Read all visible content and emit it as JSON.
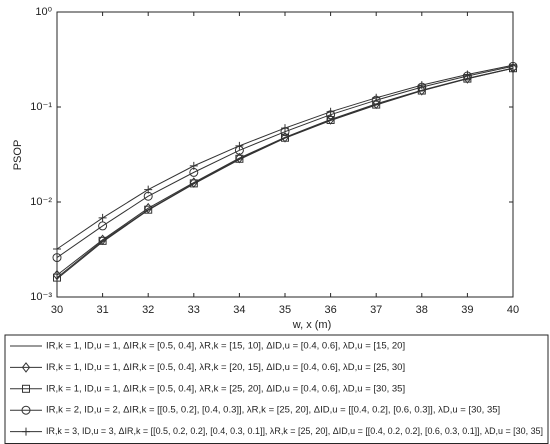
{
  "chart_data": {
    "type": "line",
    "x_label": "w, x (m)",
    "y_label": "PSOP",
    "x": [
      30,
      31,
      32,
      33,
      34,
      35,
      36,
      37,
      38,
      39,
      40
    ],
    "xlim": [
      30,
      40
    ],
    "xticks": [
      30,
      31,
      32,
      33,
      34,
      35,
      36,
      37,
      38,
      39,
      40
    ],
    "ylim": [
      0.001,
      1
    ],
    "yticks": [
      {
        "value": 0.001,
        "label": "10⁻³"
      },
      {
        "value": 0.01,
        "label": "10⁻²"
      },
      {
        "value": 0.1,
        "label": "10⁻¹"
      },
      {
        "value": 1,
        "label": "10⁰"
      }
    ],
    "log_y": true,
    "grid": false,
    "legend": "bottom",
    "series": [
      {
        "name": "IR,k = 1, ID,u = 1, ΔIR,k = [0.5, 0.4], λR,k = [15, 10], ΔID,u = [0.4, 0.6], λD,u = [15, 20]",
        "color": "#333333",
        "marker": "none",
        "values": [
          0.00155,
          0.0038,
          0.0082,
          0.0155,
          0.028,
          0.047,
          0.072,
          0.105,
          0.148,
          0.198,
          0.255
        ]
      },
      {
        "name": "IR,k = 1, ID,u = 1, ΔIR,k = [0.5, 0.4], λR,k = [20, 15], ΔID,u = [0.4, 0.6], λD,u = [25, 30]",
        "color": "#333333",
        "marker": "diamond",
        "values": [
          0.0017,
          0.004,
          0.0086,
          0.016,
          0.029,
          0.048,
          0.074,
          0.108,
          0.15,
          0.2,
          0.257
        ]
      },
      {
        "name": "IR,k = 1, ID,u = 1, ΔIR,k = [0.5, 0.4], λR,k = [25, 20], ΔID,u = [0.4, 0.6], λD,u = [30, 35]",
        "color": "#333333",
        "marker": "square",
        "values": [
          0.0016,
          0.0039,
          0.0083,
          0.0157,
          0.0285,
          0.0475,
          0.073,
          0.106,
          0.149,
          0.199,
          0.256
        ]
      },
      {
        "name": "IR,k = 2, ID,u = 2, ΔIR,k = [[0.5, 0.2], [0.4, 0.3]], λR,k = [25, 20], ΔID,u = [[0.4, 0.2], [0.6, 0.3]], λD,u = [30, 35]",
        "color": "#333333",
        "marker": "circle",
        "values": [
          0.0026,
          0.0056,
          0.0115,
          0.0205,
          0.035,
          0.055,
          0.083,
          0.118,
          0.162,
          0.212,
          0.268
        ]
      },
      {
        "name": "IR,k = 3, ID,u = 3, ΔIR,k = [[0.5, 0.2, 0.2], [0.4, 0.3, 0.1]], λR,k = [25, 20], ΔID,u = [[0.4, 0.2, 0.2], [0.6, 0.3, 0.1]], λD,u = [30, 35]",
        "color": "#333333",
        "marker": "plus",
        "values": [
          0.0032,
          0.0068,
          0.0135,
          0.024,
          0.039,
          0.06,
          0.089,
          0.125,
          0.17,
          0.22,
          0.275
        ]
      }
    ]
  }
}
